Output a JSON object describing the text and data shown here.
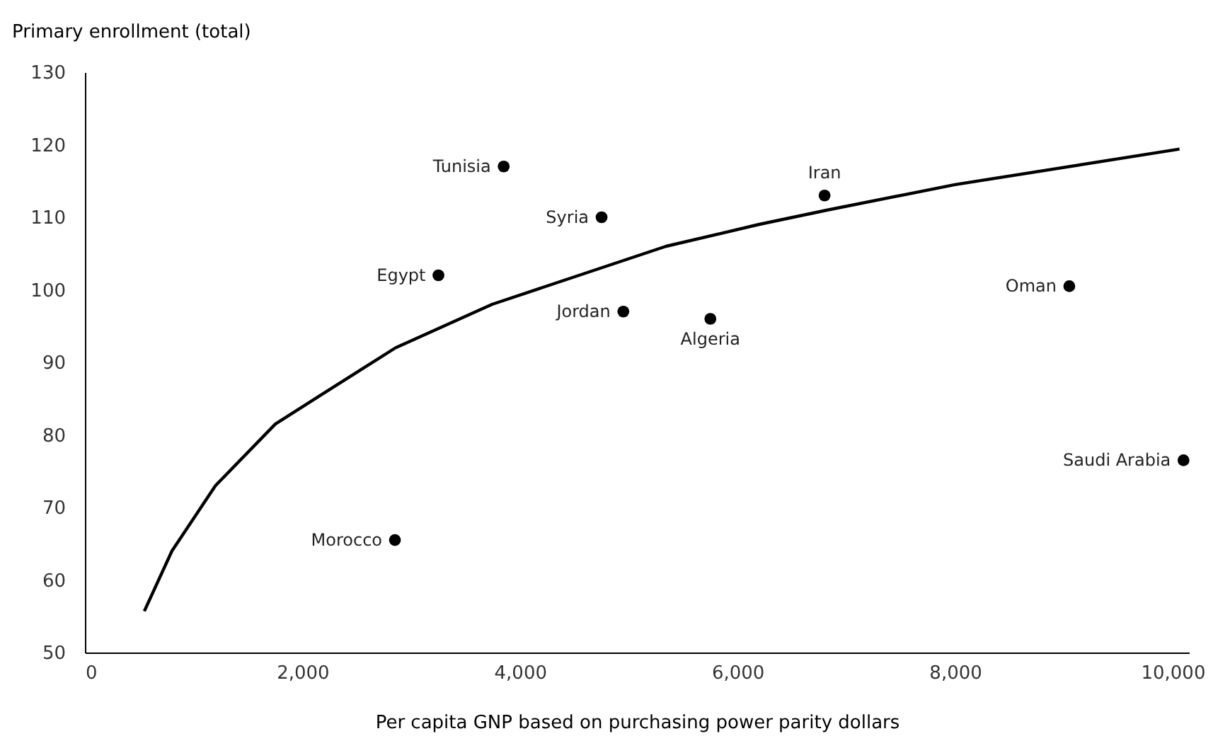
{
  "chart_data": {
    "type": "scatter",
    "ylabel": "Primary enrollment (total)",
    "xlabel": "Per capita GNP based on purchasing power parity dollars",
    "xlim": [
      0,
      10150
    ],
    "ylim": [
      50,
      130
    ],
    "xticks": [
      0,
      {
        "value": 2000,
        "label": "2,000"
      },
      {
        "value": 4000,
        "label": "4,000"
      },
      {
        "value": 6000,
        "label": "6,000"
      },
      {
        "value": 8000,
        "label": "8,000"
      },
      {
        "value": 10000,
        "label": "10,000"
      }
    ],
    "yticks": [
      50,
      60,
      70,
      80,
      90,
      100,
      110,
      120,
      130
    ],
    "grid": false,
    "marker": "circle",
    "series": [
      {
        "color": "#000000",
        "x": [
          3850,
          4750,
          3250,
          4950,
          5750,
          2850,
          6800,
          9050,
          10100
        ],
        "values": [
          117,
          110,
          102,
          97,
          96,
          65.5,
          113,
          100.5,
          76.5
        ]
      },
      {
        "type": "line",
        "color": "#000000",
        "marker": "none",
        "line_style": "solid",
        "x": [
          546,
          800,
          1200,
          1751,
          2170,
          2855,
          3744,
          4543,
          5343,
          6193,
          6827,
          8000,
          10063
        ],
        "values": [
          55.7,
          64,
          73,
          81.5,
          85.5,
          92,
          98,
          102,
          106,
          109,
          111,
          114.5,
          119.4
        ]
      }
    ],
    "annotations": [
      {
        "text": "Tunisia",
        "x": 3850,
        "y": 117
      },
      {
        "text": "Syria",
        "x": 4750,
        "y": 110
      },
      {
        "text": "Egypt",
        "x": 3250,
        "y": 102
      },
      {
        "text": "Jordan",
        "x": 4950,
        "y": 97
      },
      {
        "text": "Algeria",
        "x": 5750,
        "y": 96
      },
      {
        "text": "Morocco",
        "x": 2850,
        "y": 65.5
      },
      {
        "text": "Iran",
        "x": 6800,
        "y": 113
      },
      {
        "text": "Oman",
        "x": 9050,
        "y": 100.5
      },
      {
        "text": "Saudi Arabia",
        "x": 10100,
        "y": 76.5
      }
    ]
  }
}
